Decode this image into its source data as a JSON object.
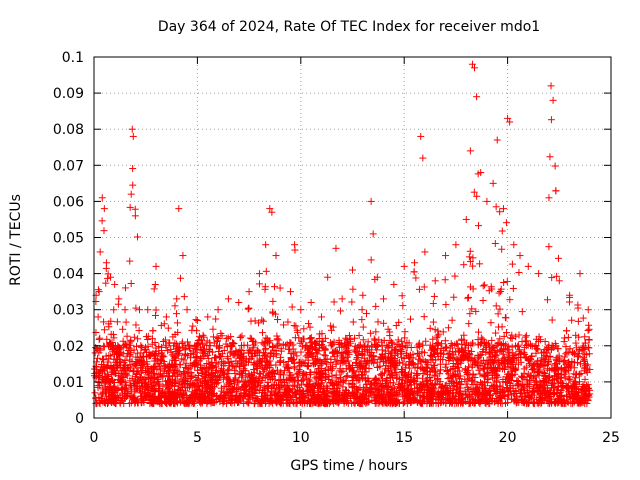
{
  "chart_data": {
    "type": "scatter",
    "title": "Day 364 of 2024, Rate Of TEC Index for receiver mdo1",
    "xlabel": "GPS time / hours",
    "ylabel": "ROTI / TECUs",
    "xlim": [
      0,
      25
    ],
    "ylim": [
      0,
      0.1
    ],
    "x_ticks": [
      "0",
      "5",
      "10",
      "15",
      "20",
      "25"
    ],
    "y_ticks": [
      "0",
      "0.01",
      "0.02",
      "0.03",
      "0.04",
      "0.05",
      "0.06",
      "0.07",
      "0.08",
      "0.09",
      "0.1"
    ],
    "x_tick_values": [
      0,
      5,
      10,
      15,
      20,
      25
    ],
    "y_tick_values": [
      0,
      0.01,
      0.02,
      0.03,
      0.04,
      0.05,
      0.06,
      0.07,
      0.08,
      0.09,
      0.1
    ],
    "grid": true,
    "marker": "+",
    "color": "#ff0000",
    "series": [
      {
        "name": "ROTI",
        "x": [
          0.1,
          0.2,
          0.3,
          0.4,
          0.5,
          0.6,
          0.8,
          1.0,
          1.2,
          1.5,
          1.8,
          1.85,
          1.9,
          2.0,
          2.2,
          2.6,
          3.0,
          3.5,
          4.0,
          4.1,
          4.3,
          4.5,
          5.0,
          5.5,
          6.0,
          6.5,
          7.0,
          7.5,
          8.0,
          8.3,
          8.5,
          8.6,
          8.8,
          9.0,
          9.5,
          9.7,
          10.0,
          10.5,
          11.0,
          11.3,
          11.7,
          12.0,
          12.5,
          13.0,
          13.4,
          13.5,
          13.7,
          14.0,
          14.5,
          15.0,
          15.5,
          15.8,
          15.9,
          16.0,
          16.5,
          17.0,
          17.5,
          18.0,
          18.2,
          18.3,
          18.4,
          18.5,
          18.7,
          19.0,
          19.3,
          19.5,
          19.8,
          20.0,
          20.1,
          20.3,
          20.6,
          21.0,
          21.5,
          22.0,
          22.1,
          22.2,
          22.5,
          23.0,
          23.5,
          23.9
        ],
        "y": [
          0.034,
          0.028,
          0.046,
          0.061,
          0.058,
          0.043,
          0.039,
          0.037,
          0.033,
          0.03,
          0.062,
          0.08,
          0.078,
          0.056,
          0.03,
          0.03,
          0.042,
          0.028,
          0.033,
          0.058,
          0.045,
          0.03,
          0.027,
          0.028,
          0.03,
          0.033,
          0.032,
          0.035,
          0.04,
          0.048,
          0.058,
          0.057,
          0.045,
          0.036,
          0.035,
          0.048,
          0.03,
          0.032,
          0.028,
          0.039,
          0.047,
          0.033,
          0.041,
          0.034,
          0.06,
          0.051,
          0.039,
          0.033,
          0.037,
          0.042,
          0.043,
          0.078,
          0.072,
          0.046,
          0.038,
          0.045,
          0.048,
          0.055,
          0.074,
          0.098,
          0.097,
          0.089,
          0.068,
          0.06,
          0.065,
          0.077,
          0.058,
          0.083,
          0.082,
          0.048,
          0.045,
          0.042,
          0.04,
          0.061,
          0.092,
          0.088,
          0.038,
          0.034,
          0.04,
          0.03
        ]
      }
    ],
    "baseline_band": {
      "low": 0.004,
      "typical": 0.012,
      "high": 0.028
    }
  }
}
